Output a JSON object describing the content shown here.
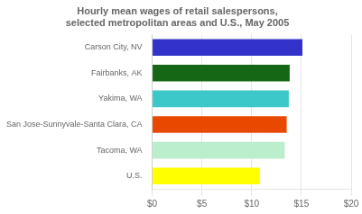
{
  "chart_data": {
    "type": "bar",
    "orientation": "horizontal",
    "title": "Hourly mean wages of retail salespersons,\nselected metropolitan areas and U.S., May 2005",
    "categories": [
      "Carson City, NV",
      "Fairbanks, AK",
      "Yakima, WA",
      "San Jose-Sunnyvale-Santa Clara, CA",
      "Tacoma, WA",
      "U.S."
    ],
    "values": [
      15.1,
      13.82,
      13.73,
      13.52,
      13.32,
      10.82
    ],
    "colors": [
      "#3333cc",
      "#156615",
      "#3cc8c8",
      "#e84800",
      "#bbeecc",
      "#ffff00"
    ],
    "xlim": [
      0,
      20
    ],
    "xticks": [
      {
        "value": 0,
        "label": "$0"
      },
      {
        "value": 5,
        "label": "$5"
      },
      {
        "value": 10,
        "label": "$10"
      },
      {
        "value": 15,
        "label": "$15"
      },
      {
        "value": 20,
        "label": "$20"
      }
    ],
    "grid": true
  }
}
